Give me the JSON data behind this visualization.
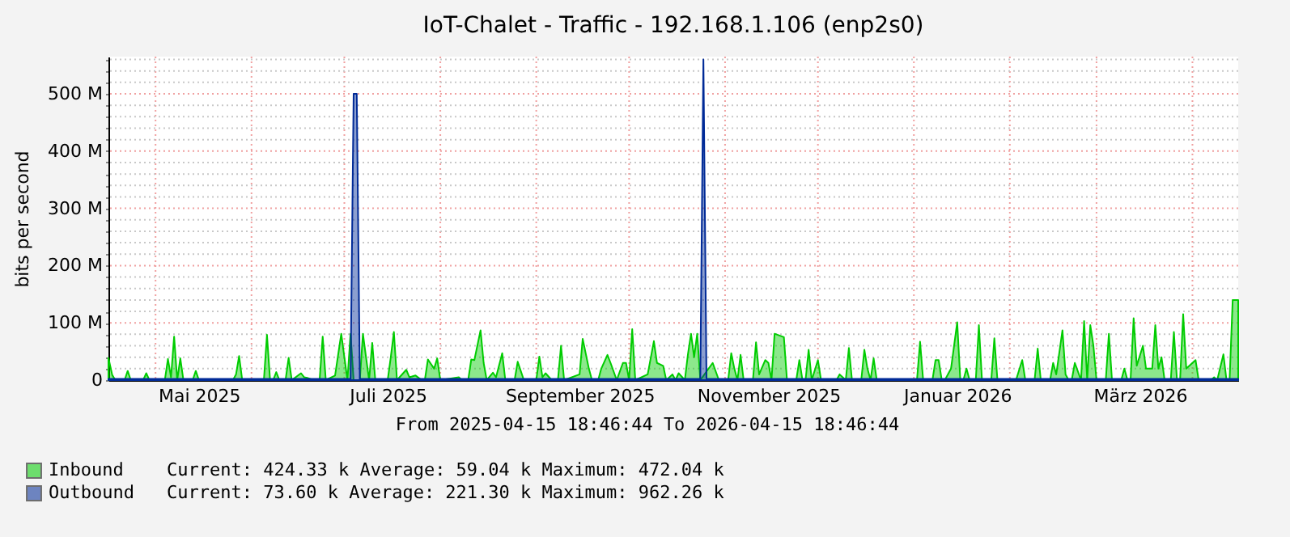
{
  "chart_data": {
    "type": "area",
    "title": "IoT-Chalet - Traffic - 192.168.1.106 (enp2s0)",
    "ylabel": "bits per second",
    "xlim": [
      "2025-04-15T18:46",
      "2026-04-15T18:46"
    ],
    "ylim": [
      0,
      565
    ],
    "yticks": [
      0,
      {
        "value": 20,
        "label": null
      },
      {
        "value": 40,
        "label": null
      },
      {
        "value": 60,
        "label": null
      },
      {
        "value": 80,
        "label": null
      },
      {
        "value": 100,
        "label": "100 M"
      },
      {
        "value": 120,
        "label": null
      },
      {
        "value": 140,
        "label": null
      },
      {
        "value": 160,
        "label": null
      },
      {
        "value": 180,
        "label": null
      },
      {
        "value": 200,
        "label": "200 M"
      },
      {
        "value": 220,
        "label": null
      },
      {
        "value": 240,
        "label": null
      },
      {
        "value": 260,
        "label": null
      },
      {
        "value": 280,
        "label": null
      },
      {
        "value": 300,
        "label": "300 M"
      },
      {
        "value": 320,
        "label": null
      },
      {
        "value": 340,
        "label": null
      },
      {
        "value": 360,
        "label": null
      },
      {
        "value": 380,
        "label": null
      },
      {
        "value": 400,
        "label": "400 M"
      },
      {
        "value": 420,
        "label": null
      },
      {
        "value": 440,
        "label": null
      },
      {
        "value": 460,
        "label": null
      },
      {
        "value": 480,
        "label": null
      },
      {
        "value": 500,
        "label": "500 M"
      },
      {
        "value": 520,
        "label": null
      },
      {
        "value": 540,
        "label": null
      },
      {
        "value": 560,
        "label": null
      }
    ],
    "xticks": [
      {
        "value": "2025-05-01",
        "label": null
      },
      {
        "value": "2025-05-15",
        "label": "Mai 2025"
      },
      {
        "value": "2025-06-01",
        "label": null
      },
      {
        "value": "2025-07-01",
        "label": null
      },
      {
        "value": "2025-07-15",
        "label": "Juli 2025"
      },
      {
        "value": "2025-08-01",
        "label": null
      },
      {
        "value": "2025-09-01",
        "label": null
      },
      {
        "value": "2025-09-15",
        "label": "September 2025"
      },
      {
        "value": "2025-10-01",
        "label": null
      },
      {
        "value": "2025-11-01",
        "label": null
      },
      {
        "value": "2025-11-15",
        "label": "November 2025"
      },
      {
        "value": "2025-12-01",
        "label": null
      },
      {
        "value": "2026-01-01",
        "label": null
      },
      {
        "value": "2026-01-15",
        "label": "Januar 2026"
      },
      {
        "value": "2026-02-01",
        "label": null
      },
      {
        "value": "2026-03-01",
        "label": null
      },
      {
        "value": "2026-03-15",
        "label": "März 2026"
      },
      {
        "value": "2026-04-01",
        "label": null
      }
    ],
    "grid": true,
    "legend": "bottom left",
    "annotations": [
      "From 2025-04-15 18:46:44 To 2026-04-15 18:46:44",
      "Current:  424.33 k  Average:   59.04 k  Maximum:  472.04 k",
      "Current:   73.60 k  Average:  221.30 k  Maximum:  962.26 k"
    ],
    "series": [
      {
        "name": "Inbound",
        "color": "#00cc00",
        "x": [
          "2025-04-15T18:46",
          "2025-04-17",
          "2025-04-18",
          "2025-04-21",
          "2025-04-22",
          "2025-04-23",
          "2025-04-27",
          "2025-04-28",
          "2025-04-29",
          "2025-05-04",
          "2025-05-05",
          "2025-05-06",
          "2025-05-07",
          "2025-05-08",
          "2025-05-09",
          "2025-05-10",
          "2025-05-13",
          "2025-05-14",
          "2025-05-15",
          "2025-05-26",
          "2025-05-27",
          "2025-05-28",
          "2025-05-29",
          "2025-06-05",
          "2025-06-06",
          "2025-06-07",
          "2025-06-08",
          "2025-06-09",
          "2025-06-10",
          "2025-06-12",
          "2025-06-13",
          "2025-06-14",
          "2025-06-17",
          "2025-06-18",
          "2025-06-19",
          "2025-06-21",
          "2025-06-23",
          "2025-06-24",
          "2025-06-25",
          "2025-06-28",
          "2025-06-30",
          "2025-07-01",
          "2025-07-02",
          "2025-07-03",
          "2025-07-04",
          "2025-07-06",
          "2025-07-07",
          "2025-07-08",
          "2025-07-09",
          "2025-07-10",
          "2025-07-11",
          "2025-07-15",
          "2025-07-16",
          "2025-07-17",
          "2025-07-18",
          "2025-07-21",
          "2025-07-22",
          "2025-07-24",
          "2025-07-26",
          "2025-07-27",
          "2025-07-28",
          "2025-07-30",
          "2025-07-31",
          "2025-08-01",
          "2025-08-07",
          "2025-08-08",
          "2025-08-10",
          "2025-08-11",
          "2025-08-12",
          "2025-08-14",
          "2025-08-15",
          "2025-08-16",
          "2025-08-18",
          "2025-08-19",
          "2025-08-21",
          "2025-08-22",
          "2025-08-25",
          "2025-08-26",
          "2025-08-28",
          "2025-09-01",
          "2025-09-02",
          "2025-09-03",
          "2025-09-04",
          "2025-09-06",
          "2025-09-08",
          "2025-09-09",
          "2025-09-10",
          "2025-09-15",
          "2025-09-16",
          "2025-09-18",
          "2025-09-19",
          "2025-09-21",
          "2025-09-22",
          "2025-09-24",
          "2025-09-25",
          "2025-09-27",
          "2025-09-29",
          "2025-09-30",
          "2025-10-01",
          "2025-10-02",
          "2025-10-03",
          "2025-10-07",
          "2025-10-09",
          "2025-10-10",
          "2025-10-12",
          "2025-10-13",
          "2025-10-15",
          "2025-10-16",
          "2025-10-17",
          "2025-10-19",
          "2025-10-20",
          "2025-10-21",
          "2025-10-22",
          "2025-10-23",
          "2025-10-24",
          "2025-10-28",
          "2025-10-30",
          "2025-11-02",
          "2025-11-03",
          "2025-11-04",
          "2025-11-05",
          "2025-11-06",
          "2025-11-07",
          "2025-11-10",
          "2025-11-11",
          "2025-11-12",
          "2025-11-14",
          "2025-11-15",
          "2025-11-16",
          "2025-11-17",
          "2025-11-20",
          "2025-11-21",
          "2025-11-24",
          "2025-11-25",
          "2025-11-26",
          "2025-11-27",
          "2025-11-28",
          "2025-11-29",
          "2025-12-01",
          "2025-12-02",
          "2025-12-07",
          "2025-12-08",
          "2025-12-10",
          "2025-12-11",
          "2025-12-12",
          "2025-12-15",
          "2025-12-16",
          "2025-12-17",
          "2025-12-18",
          "2025-12-19",
          "2025-12-20",
          "2026-01-02",
          "2026-01-03",
          "2026-01-04",
          "2026-01-07",
          "2026-01-08",
          "2026-01-09",
          "2026-01-10",
          "2026-01-11",
          "2026-01-13",
          "2026-01-15",
          "2026-01-16",
          "2026-01-17",
          "2026-01-18",
          "2026-01-19",
          "2026-01-21",
          "2026-01-22",
          "2026-01-23",
          "2026-01-26",
          "2026-01-27",
          "2026-01-28",
          "2026-02-03",
          "2026-02-05",
          "2026-02-06",
          "2026-02-09",
          "2026-02-10",
          "2026-02-11",
          "2026-02-14",
          "2026-02-15",
          "2026-02-16",
          "2026-02-18",
          "2026-02-19",
          "2026-02-20",
          "2026-02-21",
          "2026-02-22",
          "2026-02-24",
          "2026-02-25",
          "2026-02-26",
          "2026-02-27",
          "2026-02-28",
          "2026-03-01",
          "2026-03-04",
          "2026-03-05",
          "2026-03-06",
          "2026-03-09",
          "2026-03-10",
          "2026-03-11",
          "2026-03-12",
          "2026-03-13",
          "2026-03-14",
          "2026-03-16",
          "2026-03-17",
          "2026-03-19",
          "2026-03-20",
          "2026-03-21",
          "2026-03-22",
          "2026-03-23",
          "2026-03-25",
          "2026-03-26",
          "2026-03-27",
          "2026-03-28",
          "2026-03-29",
          "2026-03-30",
          "2026-04-01",
          "2026-04-02",
          "2026-04-03",
          "2026-04-07",
          "2026-04-08",
          "2026-04-09",
          "2026-04-11",
          "2026-04-12",
          "2026-04-13",
          "2026-04-14",
          "2026-04-15T18:46"
        ],
        "values": [
          39,
          9,
          0,
          0,
          16,
          0,
          0,
          12,
          0,
          0,
          37,
          5,
          76,
          0,
          38,
          0,
          0,
          16,
          0,
          0,
          10,
          42,
          0,
          0,
          79,
          0,
          0,
          14,
          0,
          0,
          39,
          0,
          12,
          5,
          4,
          0,
          0,
          76,
          0,
          8,
          81,
          40,
          0,
          81,
          0,
          0,
          81,
          40,
          0,
          65,
          0,
          0,
          40,
          84,
          0,
          18,
          5,
          8,
          0,
          0,
          36,
          20,
          38,
          0,
          5,
          0,
          0,
          36,
          35,
          87,
          30,
          0,
          13,
          5,
          47,
          0,
          0,
          32,
          0,
          0,
          41,
          5,
          12,
          0,
          0,
          60,
          0,
          10,
          72,
          20,
          0,
          0,
          20,
          44,
          30,
          0,
          30,
          30,
          0,
          89,
          0,
          10,
          68,
          30,
          25,
          0,
          10,
          0,
          12,
          0,
          45,
          81,
          40,
          81,
          0,
          30,
          0,
          0,
          47,
          20,
          0,
          44,
          0,
          0,
          66,
          10,
          35,
          30,
          0,
          81,
          75,
          0,
          0,
          35,
          0,
          0,
          53,
          0,
          35,
          0,
          0,
          10,
          0,
          56,
          0,
          0,
          53,
          20,
          0,
          38,
          0,
          0,
          67,
          0,
          0,
          35,
          35,
          0,
          0,
          20,
          101,
          0,
          0,
          20,
          0,
          0,
          96,
          0,
          0,
          73,
          0,
          0,
          35,
          0,
          0,
          55,
          0,
          0,
          30,
          10,
          87,
          10,
          0,
          0,
          30,
          0,
          103,
          0,
          96,
          60,
          0,
          0,
          81,
          0,
          0,
          20,
          0,
          0,
          108,
          25,
          60,
          20,
          20,
          96,
          20,
          40,
          0,
          0,
          84,
          0,
          0,
          115,
          20,
          30,
          35,
          0,
          0,
          5,
          0,
          45,
          0,
          0,
          140,
          140
        ]
      },
      {
        "name": "Outbound",
        "color": "#002a97",
        "x": [
          "2025-04-15T18:46",
          "2025-07-03",
          "2025-07-04",
          "2025-07-05",
          "2025-07-06",
          "2025-10-24",
          "2025-10-25",
          "2025-10-26",
          "2026-04-15T18:46"
        ],
        "values": [
          2,
          2,
          500,
          500,
          2,
          2,
          560,
          2,
          2
        ]
      }
    ]
  }
}
